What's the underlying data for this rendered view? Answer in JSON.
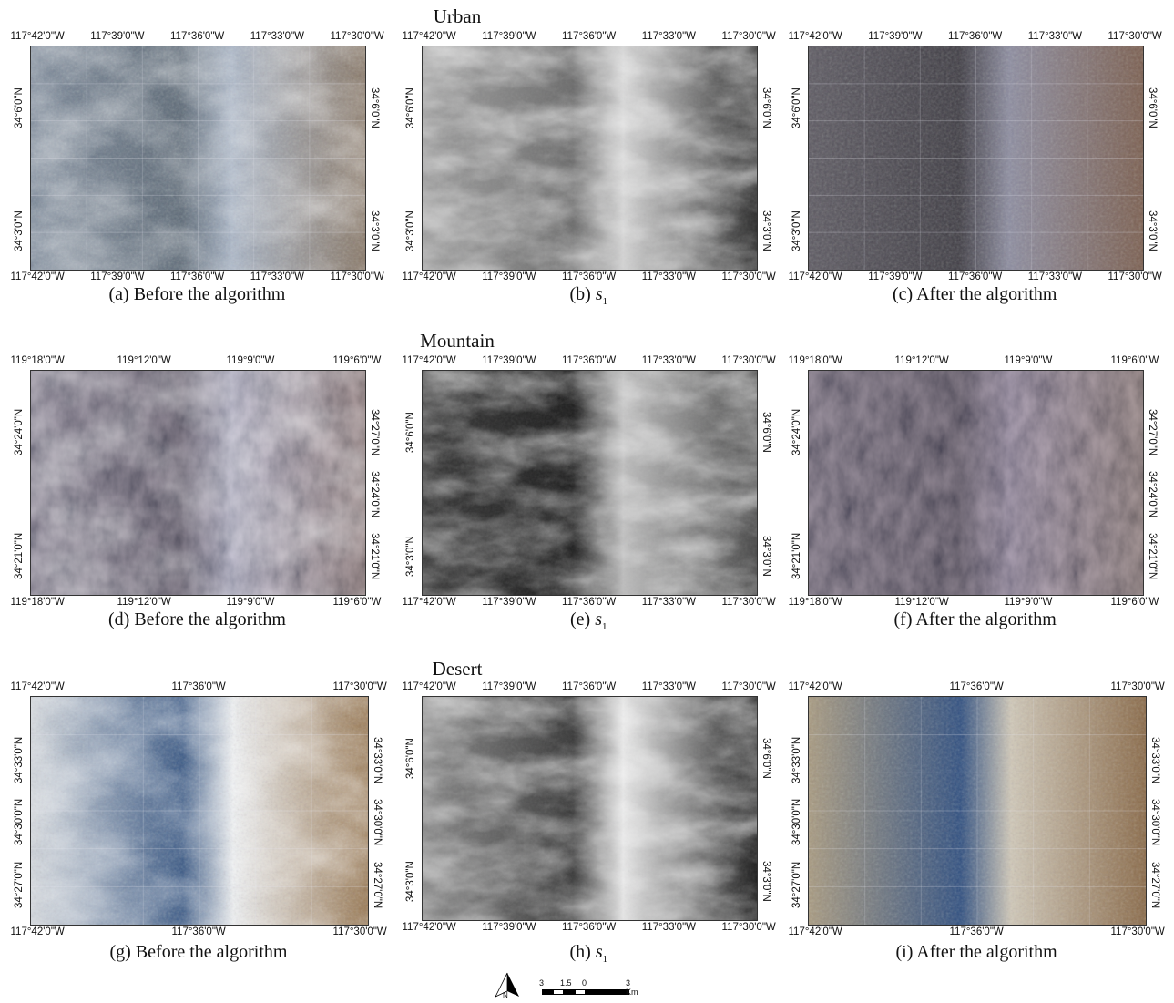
{
  "rows": [
    {
      "title": "Urban",
      "panels": [
        {
          "caption": "(a) Before the algorithm",
          "kind": "color",
          "top_ticks": [
            "117°42'0\"W",
            "117°39'0\"W",
            "117°36'0\"W",
            "117°33'0\"W",
            "117°30'0\"W"
          ],
          "bottom_ticks": [
            "117°42'0\"W",
            "117°39'0\"W",
            "117°36'0\"W",
            "117°33'0\"W",
            "117°30'0\"W"
          ],
          "left_ticks": [
            "34°6'0\"N",
            "34°3'0\"N"
          ],
          "right_ticks": [
            "34°6'0\"N",
            "34°3'0\"N"
          ]
        },
        {
          "caption_prefix": "(b) ",
          "caption_sym": "s",
          "caption_sub": "1",
          "kind": "gray",
          "top_ticks": [
            "117°42'0\"W",
            "117°39'0\"W",
            "117°36'0\"W",
            "117°33'0\"W",
            "117°30'0\"W"
          ],
          "bottom_ticks": [
            "117°42'0\"W",
            "117°39'0\"W",
            "117°36'0\"W",
            "117°33'0\"W",
            "117°30'0\"W"
          ],
          "left_ticks": [
            "34°6'0\"N",
            "34°3'0\"N"
          ],
          "right_ticks": [
            "34°6'0\"N",
            "34°3'0\"N"
          ]
        },
        {
          "caption": "(c) After the algorithm",
          "kind": "color-clear",
          "top_ticks": [
            "117°42'0\"W",
            "117°39'0\"W",
            "117°36'0\"W",
            "117°33'0\"W",
            "117°30'0\"W"
          ],
          "bottom_ticks": [
            "117°42'0\"W",
            "117°39'0\"W",
            "117°36'0\"W",
            "117°33'0\"W",
            "117°30'0\"W"
          ],
          "left_ticks": [
            "34°6'0\"N",
            "34°3'0\"N"
          ],
          "right_ticks": [
            "34°6'0\"N",
            "34°3'0\"N"
          ]
        }
      ]
    },
    {
      "title": "Mountain",
      "panels": [
        {
          "caption": "(d) Before the algorithm",
          "kind": "mountain",
          "top_ticks": [
            "119°18'0\"W",
            "119°12'0\"W",
            "119°9'0\"W",
            "119°6'0\"W"
          ],
          "bottom_ticks": [
            "119°18'0\"W",
            "119°12'0\"W",
            "119°9'0\"W",
            "119°6'0\"W"
          ],
          "left_ticks": [
            "34°24'0\"N",
            "34°21'0\"N"
          ],
          "right_ticks": [
            "34°27'0\"N",
            "34°24'0\"N",
            "34°21'0\"N"
          ]
        },
        {
          "caption_prefix": "(e) ",
          "caption_sym": "s",
          "caption_sub": "1",
          "kind": "gray-m",
          "top_ticks": [
            "117°42'0\"W",
            "117°39'0\"W",
            "117°36'0\"W",
            "117°33'0\"W",
            "117°30'0\"W"
          ],
          "bottom_ticks": [
            "117°42'0\"W",
            "117°39'0\"W",
            "117°36'0\"W",
            "117°33'0\"W",
            "117°30'0\"W"
          ],
          "left_ticks": [
            "34°6'0\"N",
            "34°3'0\"N"
          ],
          "right_ticks": [
            "34°6'0\"N",
            "34°3'0\"N"
          ]
        },
        {
          "caption": "(f) After the algorithm",
          "kind": "mountain-clear",
          "top_ticks": [
            "119°18'0\"W",
            "119°12'0\"W",
            "119°9'0\"W",
            "119°6'0\"W"
          ],
          "bottom_ticks": [
            "119°18'0\"W",
            "119°12'0\"W",
            "119°9'0\"W",
            "119°6'0\"W"
          ],
          "left_ticks": [
            "34°24'0\"N",
            "34°21'0\"N"
          ],
          "right_ticks": [
            "34°27'0\"N",
            "34°24'0\"N",
            "34°21'0\"N"
          ]
        }
      ]
    },
    {
      "title": "Desert",
      "panels": [
        {
          "caption": "(g) Before the algorithm",
          "kind": "desert",
          "top_ticks": [
            "117°42'0\"W",
            "117°36'0\"W",
            "117°30'0\"W"
          ],
          "bottom_ticks": [
            "117°42'0\"W",
            "117°36'0\"W",
            "117°30'0\"W"
          ],
          "left_ticks": [
            "34°33'0\"N",
            "34°30'0\"N",
            "34°27'0\"N"
          ],
          "right_ticks": [
            "34°33'0\"N",
            "34°30'0\"N",
            "34°27'0\"N"
          ]
        },
        {
          "caption_prefix": "(h) ",
          "caption_sym": "s",
          "caption_sub": "1",
          "kind": "gray-d",
          "top_ticks": [
            "117°42'0\"W",
            "117°39'0\"W",
            "117°36'0\"W",
            "117°33'0\"W",
            "117°30'0\"W"
          ],
          "bottom_ticks": [
            "117°42'0\"W",
            "117°39'0\"W",
            "117°36'0\"W",
            "117°33'0\"W",
            "117°30'0\"W"
          ],
          "left_ticks": [
            "34°6'0\"N",
            "34°3'0\"N"
          ],
          "right_ticks": [
            "34°6'0\"N",
            "34°3'0\"N"
          ]
        },
        {
          "caption": "(i) After the algorithm",
          "kind": "desert-clear",
          "top_ticks": [
            "117°42'0\"W",
            "117°36'0\"W",
            "117°30'0\"W"
          ],
          "bottom_ticks": [
            "117°42'0\"W",
            "117°36'0\"W",
            "117°30'0\"W"
          ],
          "left_ticks": [
            "34°33'0\"N",
            "34°30'0\"N",
            "34°27'0\"N"
          ],
          "right_ticks": [
            "34°33'0\"N",
            "34°30'0\"N",
            "34°27'0\"N"
          ]
        }
      ]
    }
  ],
  "north_arrow_label": "N",
  "scalebar_labels": [
    "3",
    "1.5",
    "0",
    "3 Km"
  ]
}
